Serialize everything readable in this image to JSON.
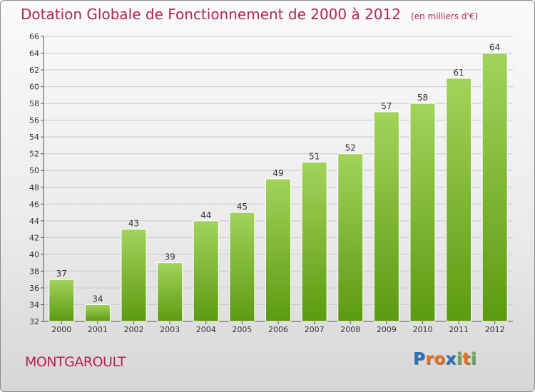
{
  "header": {
    "title": "Dotation Globale de Fonctionnement de 2000 à 2012",
    "subtitle": "(en milliers d'€)"
  },
  "commune": "MONTGAROULT",
  "logo": {
    "text": "Proxiti",
    "letter_colors": [
      "#2a6fbb",
      "#e8731e",
      "#e8731e",
      "#2a6fbb",
      "#6aa84f",
      "#e8731e",
      "#6aa84f"
    ]
  },
  "colors": {
    "title": "#b1245a",
    "bar_top": "#a3d35a",
    "bar_bottom": "#5c9a12",
    "grid": "#c8c8c8",
    "axis": "#555555"
  },
  "chart_data": {
    "type": "bar",
    "title": "Dotation Globale de Fonctionnement de 2000 à 2012",
    "subtitle": "(en milliers d'€)",
    "categories": [
      "2000",
      "2001",
      "2002",
      "2003",
      "2004",
      "2005",
      "2006",
      "2007",
      "2008",
      "2009",
      "2010",
      "2011",
      "2012"
    ],
    "values": [
      37,
      34,
      43,
      39,
      44,
      45,
      49,
      51,
      52,
      57,
      58,
      61,
      64
    ],
    "ylim": [
      32,
      66
    ],
    "yticks": [
      32,
      34,
      36,
      38,
      40,
      42,
      44,
      46,
      48,
      50,
      52,
      54,
      56,
      58,
      60,
      62,
      64,
      66
    ],
    "grid": true,
    "data_labels": true
  }
}
